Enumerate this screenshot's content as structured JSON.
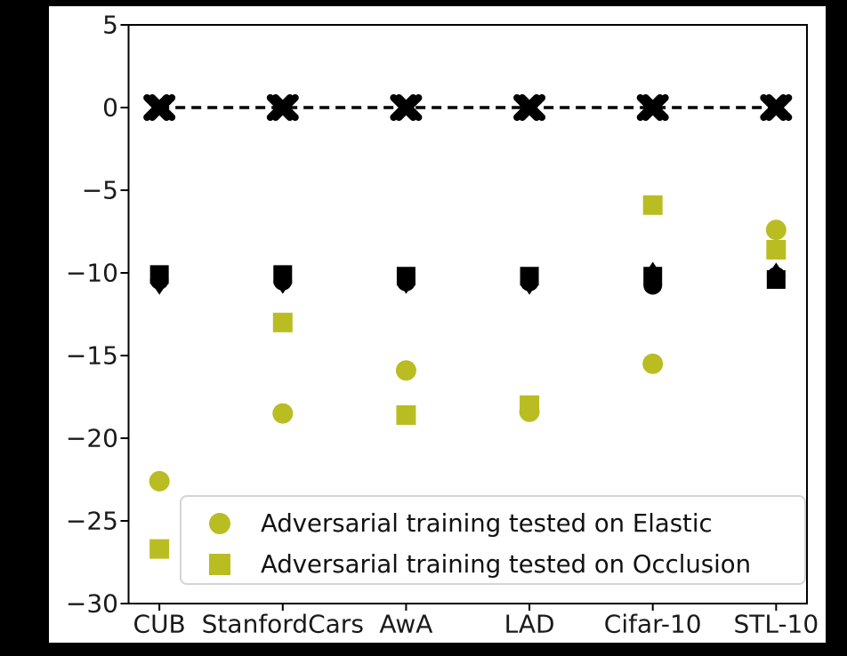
{
  "figure": {
    "background_color": "#000000",
    "canvas_color": "#ffffff",
    "axis_color": "#000000",
    "tick_label_color": "#1a1a1a",
    "accent_yellow": "#b9bd22",
    "marker_black": "#000000",
    "legend_border_color": "#d4d4d4"
  },
  "chart_data": {
    "type": "scatter",
    "title": "",
    "xlabel": "",
    "ylabel": "",
    "grid": false,
    "categories": [
      "CUB",
      "StanfordCars",
      "AwA",
      "LAD",
      "Cifar-10",
      "STL-10"
    ],
    "ylim": [
      -30,
      5
    ],
    "xlim": [
      -0.25,
      5.25
    ],
    "yticks": [
      5,
      0,
      -5,
      -10,
      -15,
      -20,
      -25,
      -30
    ],
    "ytick_labels": [
      "5",
      "0",
      "−5",
      "−10",
      "−15",
      "−20",
      "−25",
      "−30"
    ],
    "zero_reference_line": {
      "style": "dashed",
      "color": "#000000",
      "marker": "bold-x",
      "values": [
        0,
        0,
        0,
        0,
        0,
        0
      ]
    },
    "series": [
      {
        "name": "Adversarial training tested on Elastic",
        "marker": "circle",
        "color": "#b9bd22",
        "values": [
          -22.6,
          -18.5,
          -15.9,
          -18.4,
          -15.5,
          -7.4
        ]
      },
      {
        "name": "Adversarial training tested on Occlusion",
        "marker": "square",
        "color": "#b9bd22",
        "values": [
          -26.7,
          -13.0,
          -18.6,
          -18.0,
          -5.9,
          -8.6
        ]
      }
    ],
    "unlabeled_black_clusters": {
      "comment_shape": "overlapping black square + circle + small tip marker per category",
      "square_values": [
        -10.1,
        -10.1,
        -10.2,
        -10.2,
        -10.2,
        -10.4
      ],
      "circle_values": [
        -10.45,
        -10.5,
        -10.55,
        -10.55,
        -10.75,
        -10.2
      ],
      "tip_values": [
        -11.0,
        -10.95,
        -10.95,
        -11.0,
        -9.65,
        -9.7
      ]
    },
    "legend": {
      "position": "lower right",
      "entries": [
        {
          "marker": "circle",
          "label": "Adversarial training tested on Elastic"
        },
        {
          "marker": "square",
          "label": "Adversarial training tested on Occlusion"
        }
      ]
    }
  }
}
